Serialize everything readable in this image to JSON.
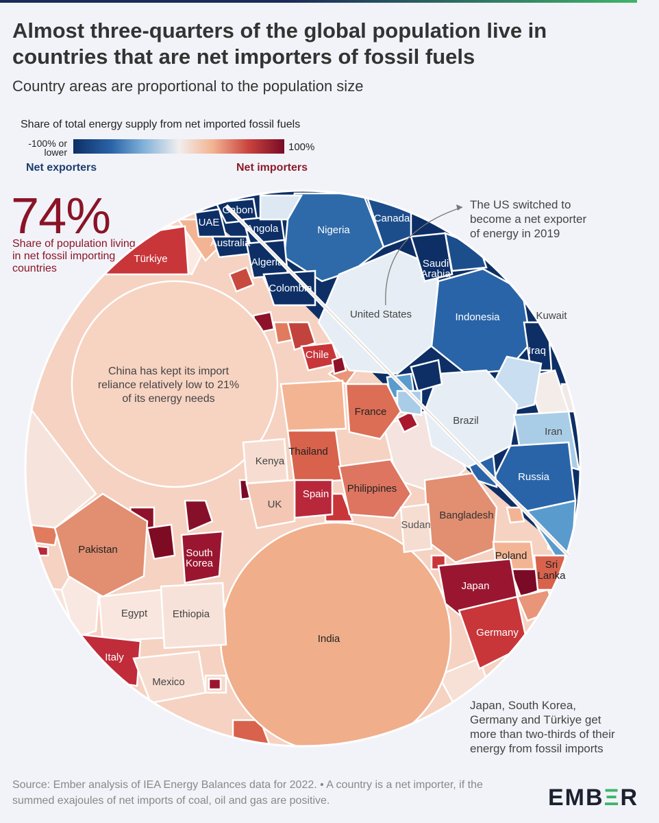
{
  "header": {
    "title": "Almost three-quarters of the global population live in countries that are net importers of fossil fuels",
    "subtitle": "Country areas are proportional to the population size"
  },
  "legend": {
    "title": "Share of total energy supply from net imported fossil fuels",
    "min_label": "-100% or lower",
    "max_label": "100%",
    "exporters_label": "Net exporters",
    "importers_label": "Net importers"
  },
  "callout": {
    "value": "74%",
    "description": "Share of population living in net fossil importing countries"
  },
  "annotations": {
    "us": "The US switched to become a net exporter of energy in 2019",
    "china": "China has kept its import reliance relatively low to 21% of its energy needs",
    "japan": "Japan, South Korea, Germany and Türkiye get more than two-thirds of their energy from fossil imports"
  },
  "colors": {
    "exporter_deep": "#0d2f66",
    "exporter_mid": "#2a64a8",
    "exporter_light": "#a9cde6",
    "neutral": "#f1e9e6",
    "importer_light": "#f3b493",
    "importer_mid": "#d8624c",
    "importer_deep": "#7a0a26",
    "background": "#f2f3f8",
    "brand_green": "#3fb56a"
  },
  "chart_data": {
    "type": "voronoi-treemap",
    "metric": "share of total energy supply from net imported fossil fuels (%)",
    "area_metric": "population",
    "scale_range": [
      -100,
      100
    ],
    "exporters": [
      {
        "name": "United States",
        "value": -5
      },
      {
        "name": "Indonesia",
        "value": -75
      },
      {
        "name": "Brazil",
        "value": -5
      },
      {
        "name": "Nigeria",
        "value": -70
      },
      {
        "name": "Russia",
        "value": -80
      },
      {
        "name": "Iran",
        "value": -35
      },
      {
        "name": "Canada",
        "value": -90
      },
      {
        "name": "Saudi Arabia",
        "value": -100
      },
      {
        "name": "Colombia",
        "value": -100
      },
      {
        "name": "Algeria",
        "value": -100
      },
      {
        "name": "Angola",
        "value": -100
      },
      {
        "name": "Gabon",
        "value": -100
      },
      {
        "name": "UAE",
        "value": -100
      },
      {
        "name": "Australia",
        "value": -100
      },
      {
        "name": "Iraq",
        "value": -100
      },
      {
        "name": "Kuwait",
        "value": -100
      }
    ],
    "importers": [
      {
        "name": "China",
        "value": 21
      },
      {
        "name": "India",
        "value": 35
      },
      {
        "name": "Pakistan",
        "value": 40
      },
      {
        "name": "Bangladesh",
        "value": 40
      },
      {
        "name": "Japan",
        "value": 87
      },
      {
        "name": "Germany",
        "value": 68
      },
      {
        "name": "South Korea",
        "value": 85
      },
      {
        "name": "Türkiye",
        "value": 70
      },
      {
        "name": "Philippines",
        "value": 55
      },
      {
        "name": "Thailand",
        "value": 55
      },
      {
        "name": "France",
        "value": 48
      },
      {
        "name": "Italy",
        "value": 75
      },
      {
        "name": "Spain",
        "value": 70
      },
      {
        "name": "UK",
        "value": 15
      },
      {
        "name": "Poland",
        "value": 40
      },
      {
        "name": "Sri Lanka",
        "value": 55
      },
      {
        "name": "Chile",
        "value": 65
      },
      {
        "name": "Kenya",
        "value": 15
      },
      {
        "name": "Sudan",
        "value": 10
      },
      {
        "name": "Egypt",
        "value": 5
      },
      {
        "name": "Ethiopia",
        "value": 5
      },
      {
        "name": "Mexico",
        "value": 10
      }
    ]
  },
  "footer": {
    "source": "Source: Ember analysis of IEA Energy Balances data for 2022. • A country is a net importer, if the summed exajoules of net imports of coal, oil and gas are positive.",
    "logo_a": "EMB",
    "logo_b": "Ξ",
    "logo_c": "R"
  }
}
